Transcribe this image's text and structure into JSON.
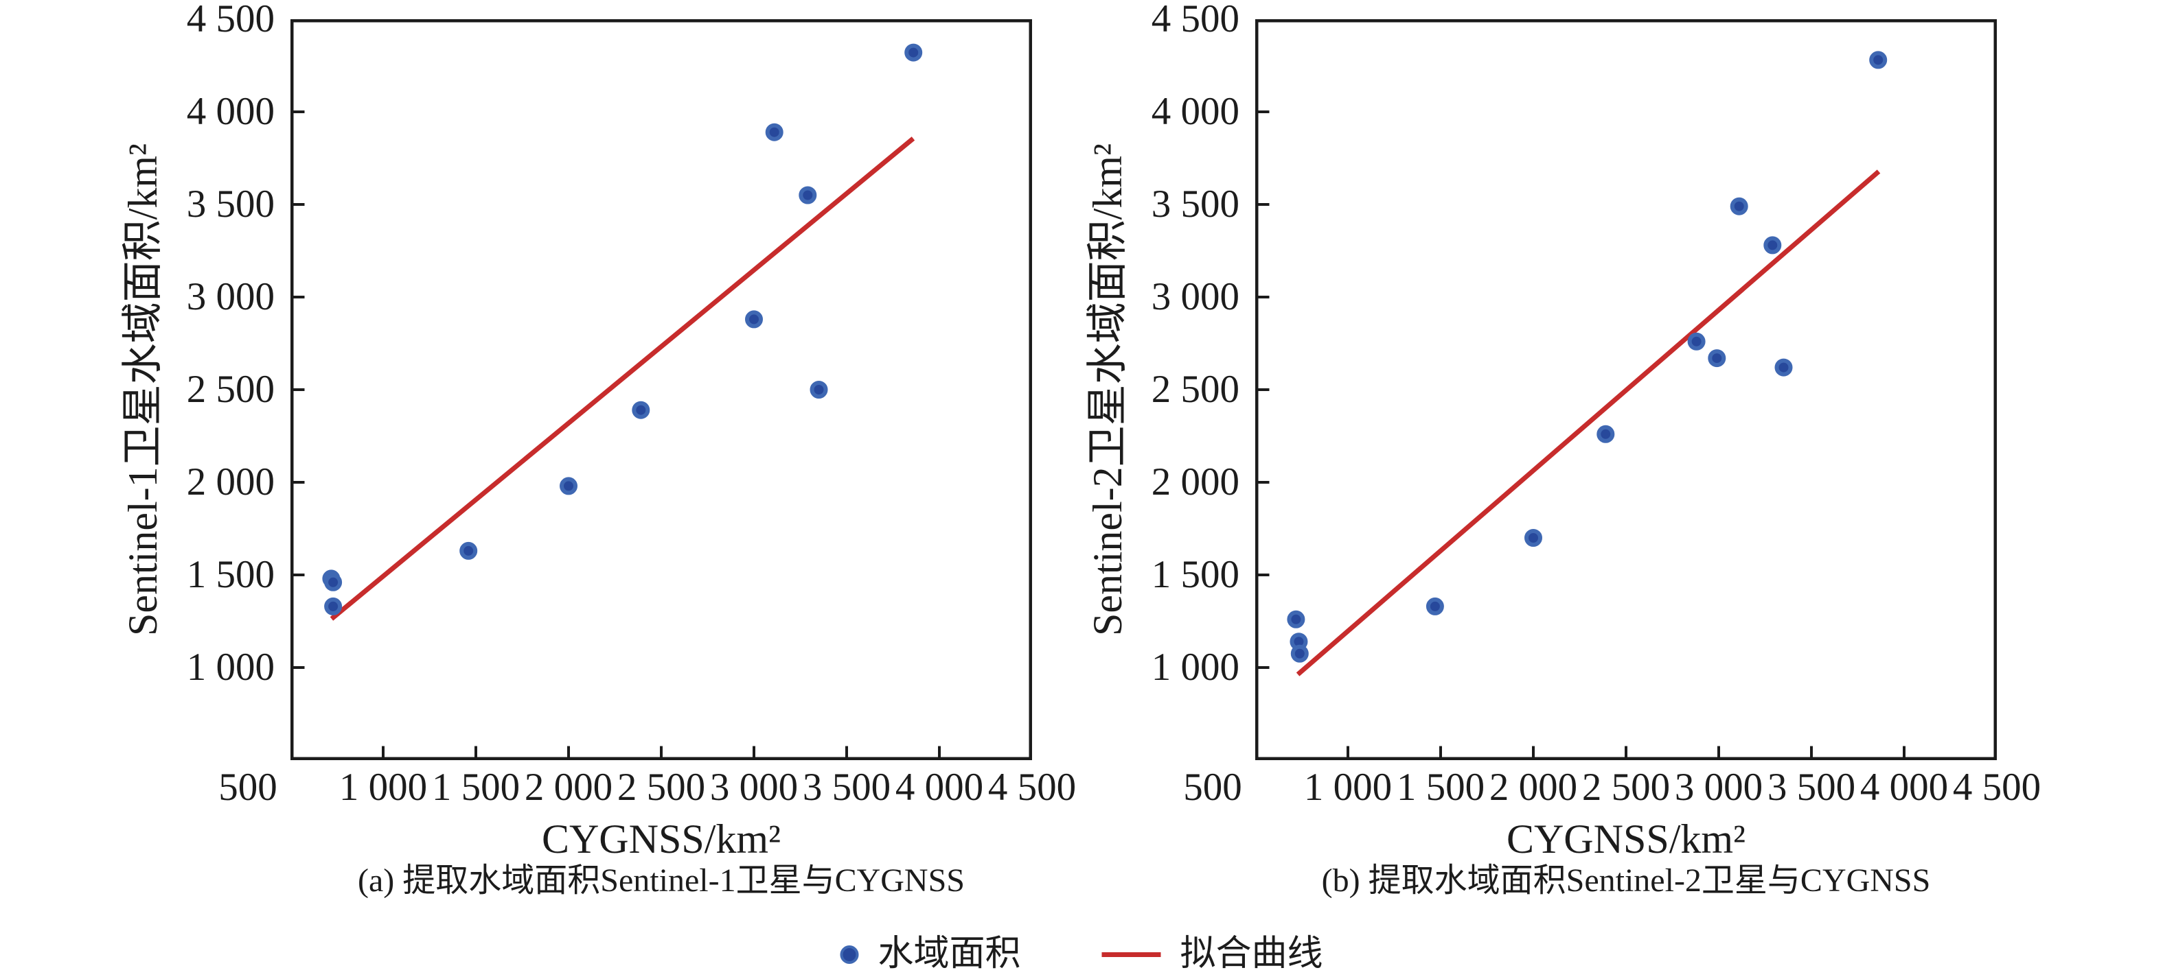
{
  "figure": {
    "background": "#ffffff",
    "colors": {
      "point_fill": "#27489b",
      "point_edge": "#3f68b3",
      "fit_line": "#c72c2c",
      "axis": "#1b1b1b",
      "text": "#1c1c1c"
    },
    "legend": {
      "marker_label": "水域面积",
      "line_label": "拟合曲线"
    }
  },
  "chart_data": [
    {
      "type": "scatter",
      "title": "(a) 提取水域面积Sentinel-1卫星与CYGNSS",
      "xlabel": "CYGNSS/km²",
      "ylabel": "Sentinel-1卫星水域面积/km²",
      "xlim": [
        500,
        4500
      ],
      "ylim": [
        500,
        4500
      ],
      "grid": false,
      "xticks": {
        "values": [
          500,
          1000,
          1500,
          2000,
          2500,
          3000,
          3500,
          4000,
          4500
        ],
        "labels": [
          "500",
          "1 000",
          "1 500",
          "2 000",
          "2 500",
          "3 000",
          "3 500",
          "4 000",
          "4 500"
        ]
      },
      "yticks": {
        "values": [
          1000,
          1500,
          2000,
          2500,
          3000,
          3500,
          4000,
          4500
        ],
        "labels": [
          "1 000",
          "1 500",
          "2 000",
          "2 500",
          "3 000",
          "3 500",
          "4 000",
          "4 500"
        ]
      },
      "series": [
        {
          "name": "水域面积",
          "type": "scatter",
          "points": [
            [
              720,
              1480
            ],
            [
              730,
              1460
            ],
            [
              730,
              1330
            ],
            [
              1460,
              1630
            ],
            [
              2000,
              1980
            ],
            [
              2390,
              2390
            ],
            [
              3000,
              2880
            ],
            [
              3350,
              2500
            ],
            [
              3290,
              3550
            ],
            [
              3110,
              3890
            ],
            [
              3860,
              4320
            ]
          ]
        },
        {
          "name": "拟合曲线",
          "type": "line",
          "points": [
            [
              722,
              1263
            ],
            [
              3859,
              3856
            ]
          ]
        }
      ]
    },
    {
      "type": "scatter",
      "title": "(b) 提取水域面积Sentinel-2卫星与CYGNSS",
      "xlabel": "CYGNSS/km²",
      "ylabel": "Sentinel-2卫星水域面积/km²",
      "xlim": [
        500,
        4500
      ],
      "ylim": [
        500,
        4500
      ],
      "grid": false,
      "xticks": {
        "values": [
          500,
          1000,
          1500,
          2000,
          2500,
          3000,
          3500,
          4000,
          4500
        ],
        "labels": [
          "500",
          "1 000",
          "1 500",
          "2 000",
          "2 500",
          "3 000",
          "3 500",
          "4 000",
          "4 500"
        ]
      },
      "yticks": {
        "values": [
          1000,
          1500,
          2000,
          2500,
          3000,
          3500,
          4000,
          4500
        ],
        "labels": [
          "1 000",
          "1 500",
          "2 000",
          "2 500",
          "3 000",
          "3 500",
          "4 000",
          "4 500"
        ]
      },
      "series": [
        {
          "name": "水域面积",
          "type": "scatter",
          "points": [
            [
              720,
              1260
            ],
            [
              735,
              1140
            ],
            [
              740,
              1075
            ],
            [
              1470,
              1330
            ],
            [
              2000,
              1700
            ],
            [
              2390,
              2260
            ],
            [
              2880,
              2760
            ],
            [
              2990,
              2670
            ],
            [
              3350,
              2620
            ],
            [
              3110,
              3490
            ],
            [
              3290,
              3280
            ],
            [
              3860,
              4280
            ]
          ]
        },
        {
          "name": "拟合曲线",
          "type": "line",
          "points": [
            [
              730,
              963
            ],
            [
              3863,
              3678
            ]
          ]
        }
      ]
    }
  ]
}
